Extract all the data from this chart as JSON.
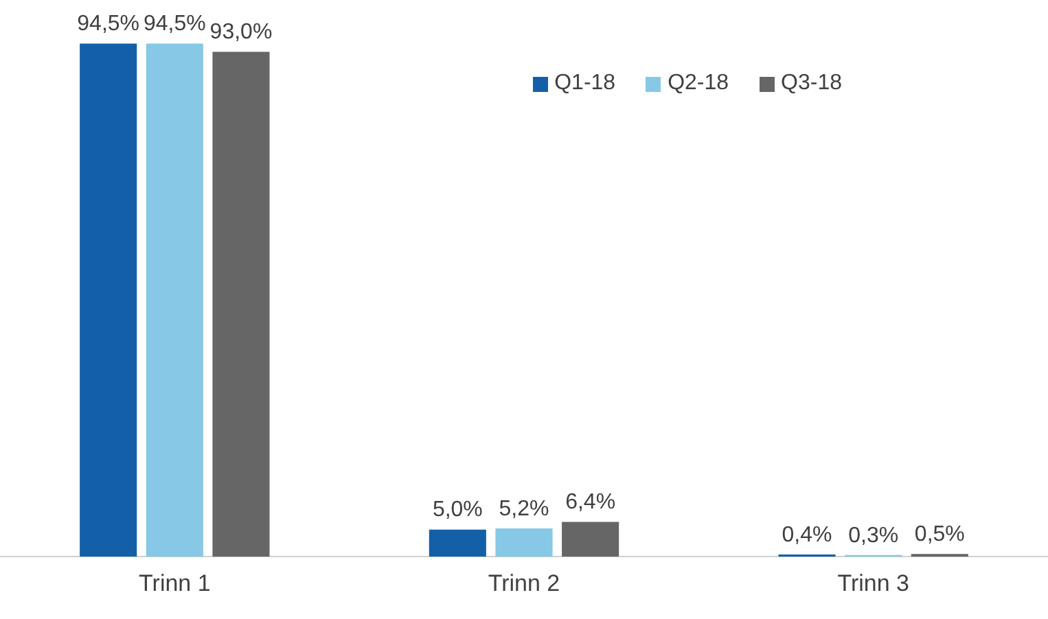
{
  "chart_data": {
    "type": "bar",
    "categories": [
      "Trinn 1",
      "Trinn 2",
      "Trinn 3"
    ],
    "legend": "top right",
    "series": [
      {
        "name": "Q1-18",
        "color": "#1460a8",
        "values": [
          94.5,
          5.0,
          0.4
        ],
        "value_labels": [
          "94,5%",
          "5,0%",
          "0,4%"
        ]
      },
      {
        "name": "Q2-18",
        "color": "#87c8e6",
        "values": [
          94.5,
          5.2,
          0.3
        ],
        "value_labels": [
          "94,5%",
          "5,2%",
          "0,3%"
        ]
      },
      {
        "name": "Q3-18",
        "color": "#666666",
        "values": [
          93.0,
          6.4,
          0.5
        ],
        "value_labels": [
          "93,0%",
          "6,4%",
          "0,5%"
        ]
      }
    ]
  }
}
